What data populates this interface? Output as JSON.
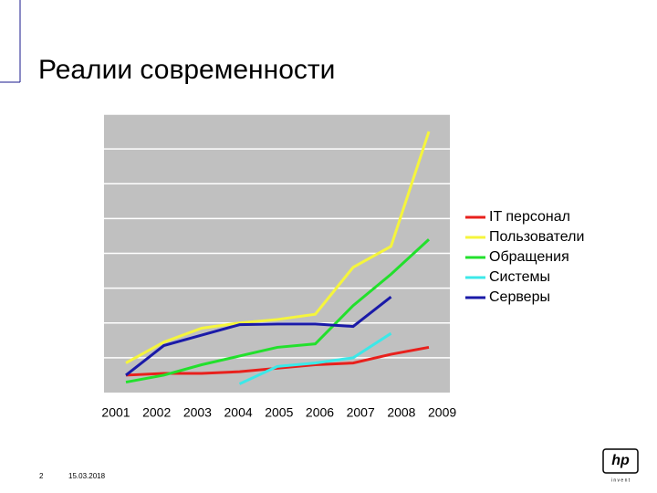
{
  "slide": {
    "title": "Реалии современности",
    "page_number": "2",
    "date": "15.03.2018",
    "logo": "hp",
    "logo_tagline": "i n v e n t"
  },
  "chart_data": {
    "type": "line",
    "categories": [
      "2001",
      "2002",
      "2003",
      "2004",
      "2005",
      "2006",
      "2007",
      "2008",
      "2009"
    ],
    "series": [
      {
        "name": "IT персонал",
        "color": "#e8201c",
        "values": [
          0.5,
          0.55,
          0.55,
          0.6,
          0.7,
          0.8,
          0.85,
          1.1,
          1.3
        ]
      },
      {
        "name": "Пользователи",
        "color": "#f5f53c",
        "values": [
          0.85,
          1.45,
          1.85,
          2.0,
          2.1,
          2.25,
          3.6,
          4.2,
          7.5
        ]
      },
      {
        "name": "Обращения",
        "color": "#22e02c",
        "values": [
          0.3,
          0.5,
          0.8,
          1.05,
          1.3,
          1.4,
          2.5,
          3.4,
          4.4
        ]
      },
      {
        "name": "Системы",
        "color": "#3ce8e8",
        "values": [
          null,
          null,
          null,
          0.25,
          0.75,
          0.85,
          1.0,
          1.7,
          null
        ]
      },
      {
        "name": "Серверы",
        "color": "#1a1aa8",
        "values": [
          0.5,
          1.35,
          1.65,
          1.95,
          1.97,
          1.97,
          1.9,
          2.75,
          null
        ]
      }
    ],
    "ylim": [
      0,
      8
    ],
    "yticks": [
      1,
      2,
      3,
      4,
      5,
      6,
      7,
      8
    ],
    "grid": true,
    "legend": "right"
  }
}
